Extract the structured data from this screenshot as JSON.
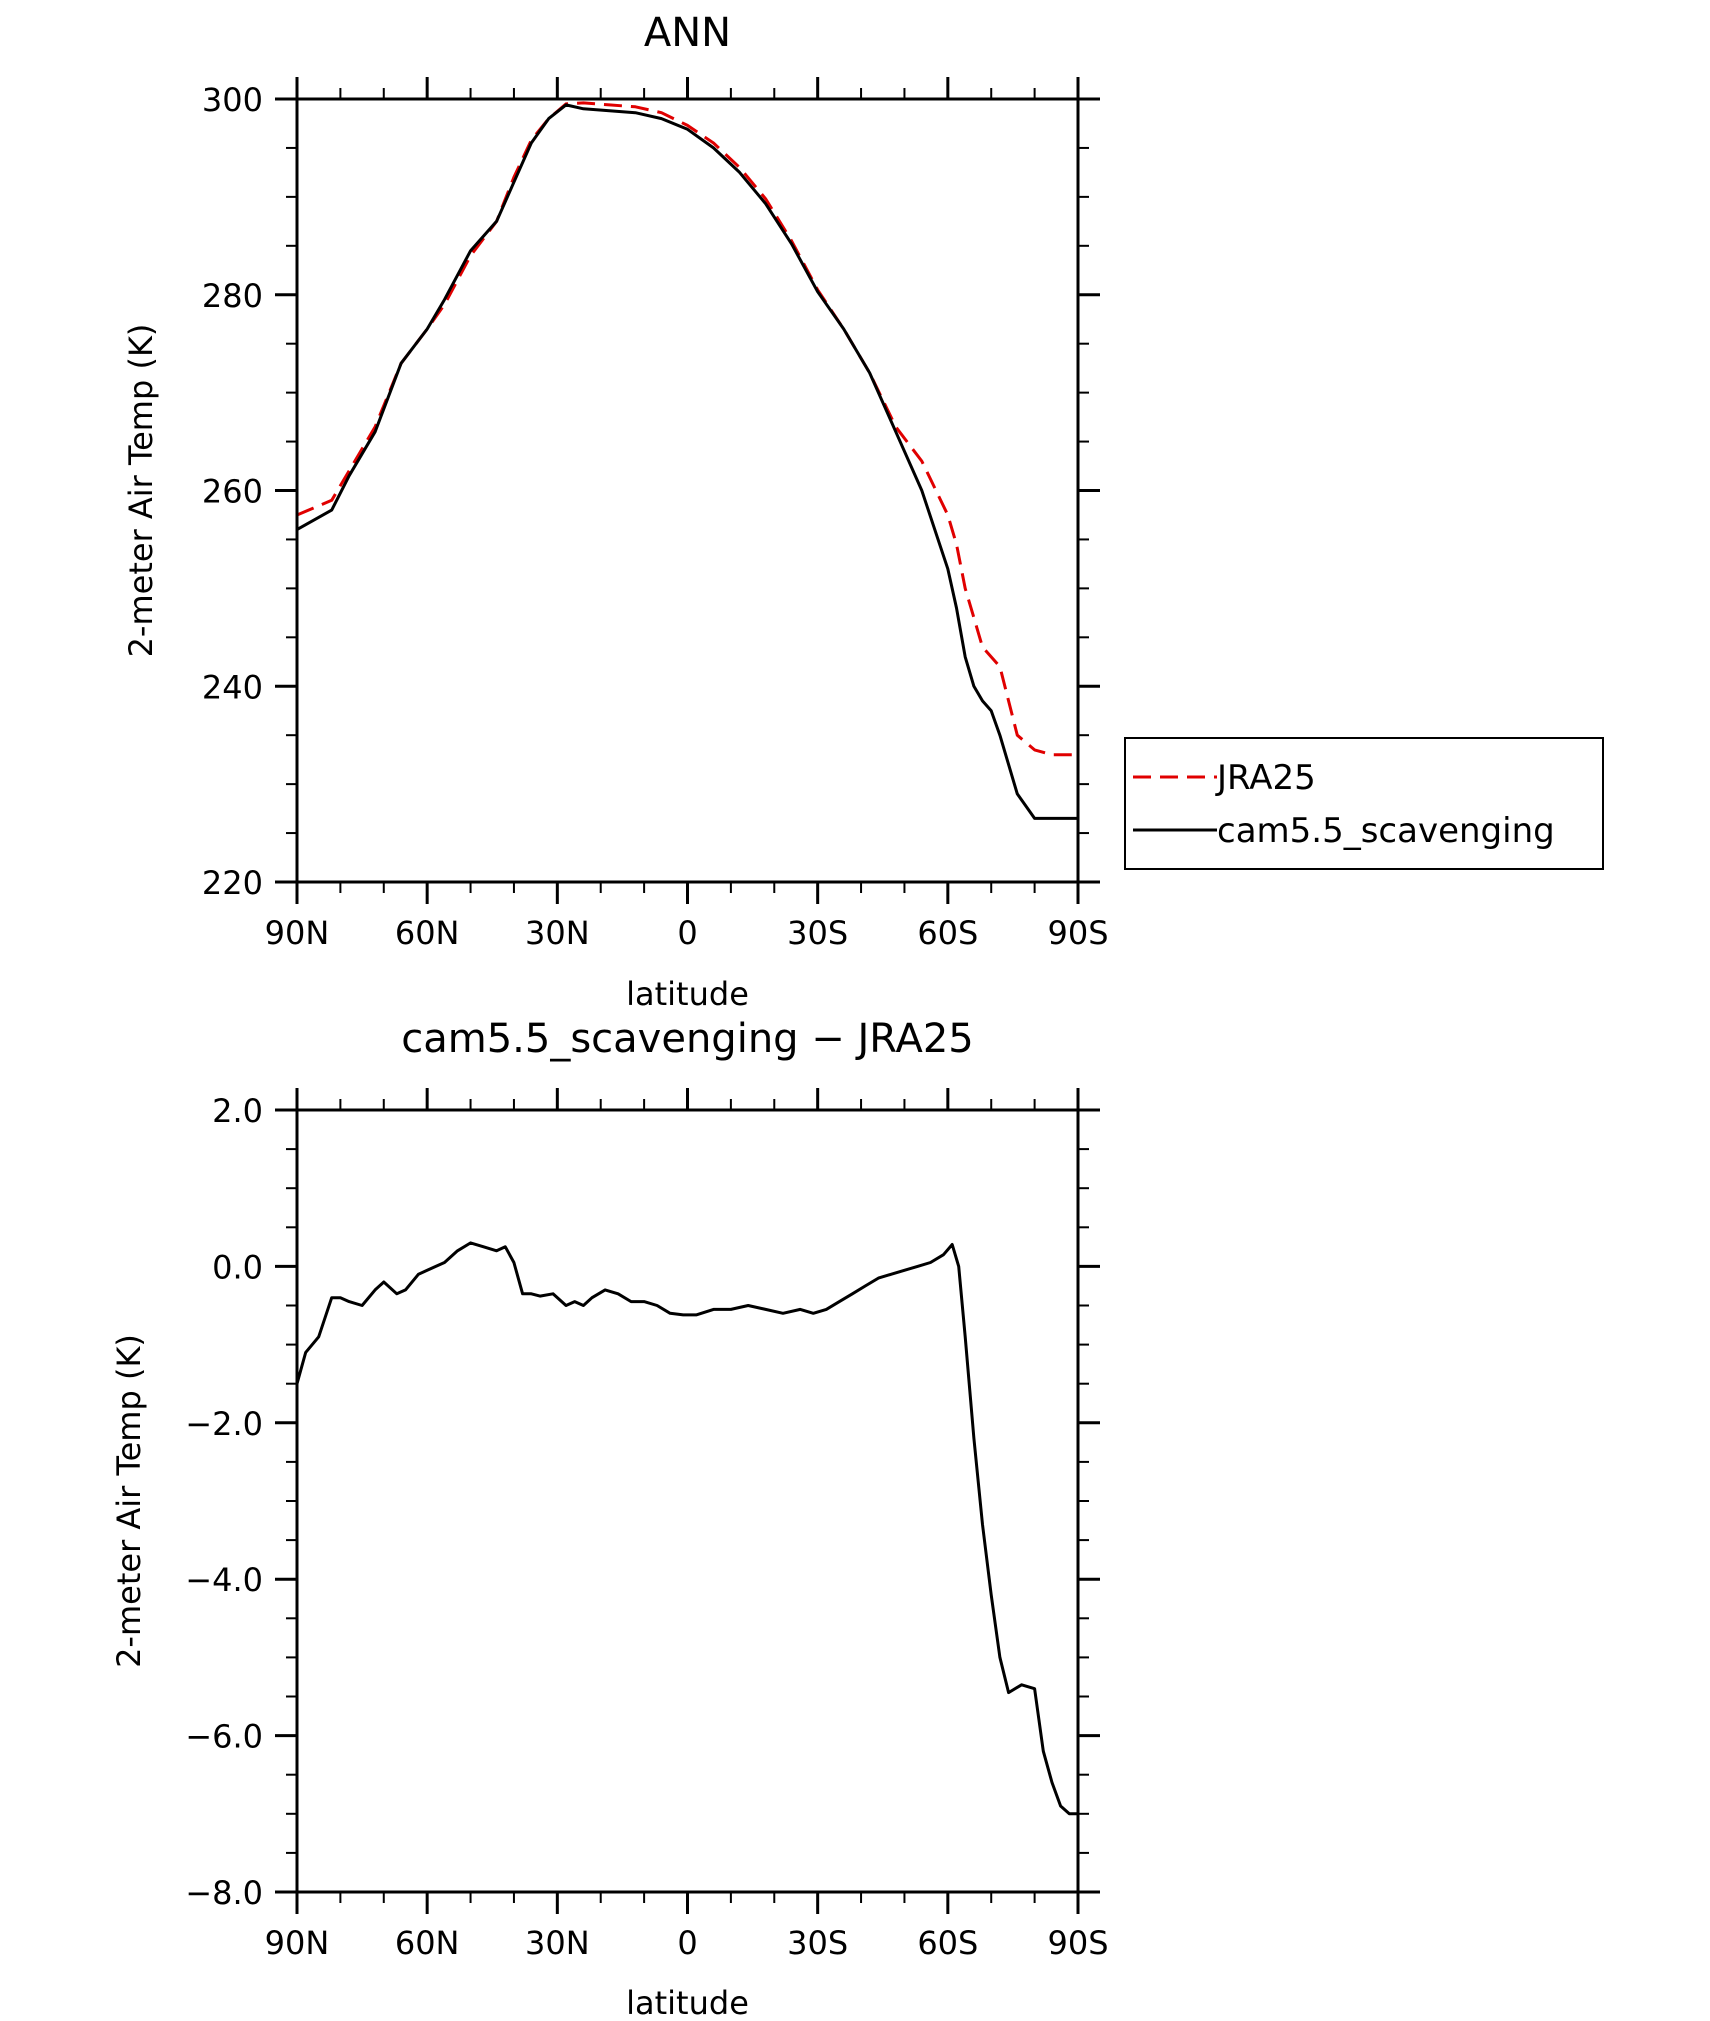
{
  "chart_data": [
    {
      "type": "line",
      "title": "ANN",
      "xlabel": "latitude",
      "ylabel": "2-meter Air Temp (K)",
      "xlim": [
        90,
        -90
      ],
      "ylim": [
        220,
        300
      ],
      "xticks": [
        90,
        60,
        30,
        0,
        -30,
        -60,
        -90
      ],
      "xtick_labels": [
        "90N",
        "60N",
        "30N",
        "0",
        "30S",
        "60S",
        "90S"
      ],
      "yticks": [
        220,
        240,
        260,
        280,
        300
      ],
      "ytick_labels": [
        "220",
        "240",
        "260",
        "280",
        "300"
      ],
      "grid": false,
      "legend_position": "right, outside plot",
      "x": [
        90,
        82,
        78,
        72,
        66,
        60,
        56,
        50,
        44,
        40,
        36,
        32,
        28,
        24,
        18,
        12,
        6,
        0,
        -6,
        -12,
        -18,
        -24,
        -30,
        -36,
        -42,
        -48,
        -54,
        -60,
        -62,
        -64,
        -66,
        -68,
        -70,
        -72,
        -76,
        -80,
        -84,
        -87,
        -90
      ],
      "series": [
        {
          "name": "JRA25",
          "color": "#e00000",
          "dash": true,
          "values": [
            257.5,
            259.0,
            262.0,
            266.5,
            273.0,
            276.5,
            279.0,
            284.0,
            287.5,
            292.0,
            295.8,
            298.0,
            299.5,
            299.6,
            299.4,
            299.2,
            298.6,
            297.3,
            295.5,
            293.0,
            289.8,
            285.5,
            280.5,
            276.5,
            272.0,
            266.5,
            263.0,
            257.5,
            254.5,
            250.0,
            247.0,
            244.0,
            243.0,
            242.0,
            235.0,
            233.5,
            233.0,
            233.0,
            233.0
          ]
        },
        {
          "name": "cam5.5_scavenging",
          "color": "#000000",
          "dash": false,
          "values": [
            256.0,
            258.0,
            261.5,
            266.0,
            273.0,
            276.5,
            279.5,
            284.5,
            287.5,
            291.5,
            295.5,
            298.0,
            299.4,
            299.0,
            298.8,
            298.6,
            298.0,
            296.9,
            295.0,
            292.5,
            289.3,
            285.2,
            280.3,
            276.5,
            272.0,
            266.0,
            260.0,
            252.0,
            248.0,
            243.0,
            240.0,
            238.5,
            237.5,
            235.0,
            229.0,
            226.5,
            226.5,
            226.5,
            226.5
          ]
        }
      ]
    },
    {
      "type": "line",
      "title": "cam5.5_scavenging − JRA25",
      "xlabel": "latitude",
      "ylabel": "2-meter Air Temp (K)",
      "xlim": [
        90,
        -90
      ],
      "ylim": [
        -8,
        2
      ],
      "xticks": [
        90,
        60,
        30,
        0,
        -30,
        -60,
        -90
      ],
      "xtick_labels": [
        "90N",
        "60N",
        "30N",
        "0",
        "30S",
        "60S",
        "90S"
      ],
      "yticks": [
        -8,
        -6,
        -4,
        -2,
        0,
        2
      ],
      "ytick_labels": [
        "−8.0",
        "−6.0",
        "−4.0",
        "−2.0",
        "0.0",
        "2.0"
      ],
      "grid": false,
      "x": [
        90,
        88,
        85,
        82,
        80,
        78,
        75,
        72,
        70,
        67,
        65,
        62,
        60,
        58,
        56,
        53,
        50,
        47,
        44,
        42,
        40,
        38,
        36,
        34,
        31,
        28,
        26,
        24,
        22,
        19,
        16,
        13,
        10,
        7,
        4,
        1,
        -2,
        -6,
        -10,
        -14,
        -18,
        -22,
        -26,
        -29,
        -32,
        -35,
        -38,
        -41,
        -44,
        -47,
        -50,
        -53,
        -56,
        -59,
        -61,
        -62.5,
        -64,
        -66,
        -68,
        -70,
        -72,
        -74,
        -77,
        -80,
        -82,
        -84,
        -86,
        -88,
        -90
      ],
      "values": [
        -1.5,
        -1.1,
        -0.9,
        -0.4,
        -0.4,
        -0.45,
        -0.5,
        -0.3,
        -0.2,
        -0.35,
        -0.3,
        -0.1,
        -0.05,
        0.0,
        0.05,
        0.2,
        0.3,
        0.25,
        0.2,
        0.25,
        0.05,
        -0.35,
        -0.35,
        -0.38,
        -0.35,
        -0.5,
        -0.45,
        -0.5,
        -0.4,
        -0.3,
        -0.35,
        -0.45,
        -0.45,
        -0.5,
        -0.6,
        -0.62,
        -0.62,
        -0.55,
        -0.55,
        -0.5,
        -0.55,
        -0.6,
        -0.55,
        -0.6,
        -0.55,
        -0.45,
        -0.35,
        -0.25,
        -0.15,
        -0.1,
        -0.05,
        0.0,
        0.05,
        0.15,
        0.28,
        0.0,
        -0.9,
        -2.2,
        -3.3,
        -4.2,
        -5.0,
        -5.45,
        -5.35,
        -5.4,
        -6.2,
        -6.6,
        -6.9,
        -7.0,
        -7.0
      ]
    }
  ]
}
